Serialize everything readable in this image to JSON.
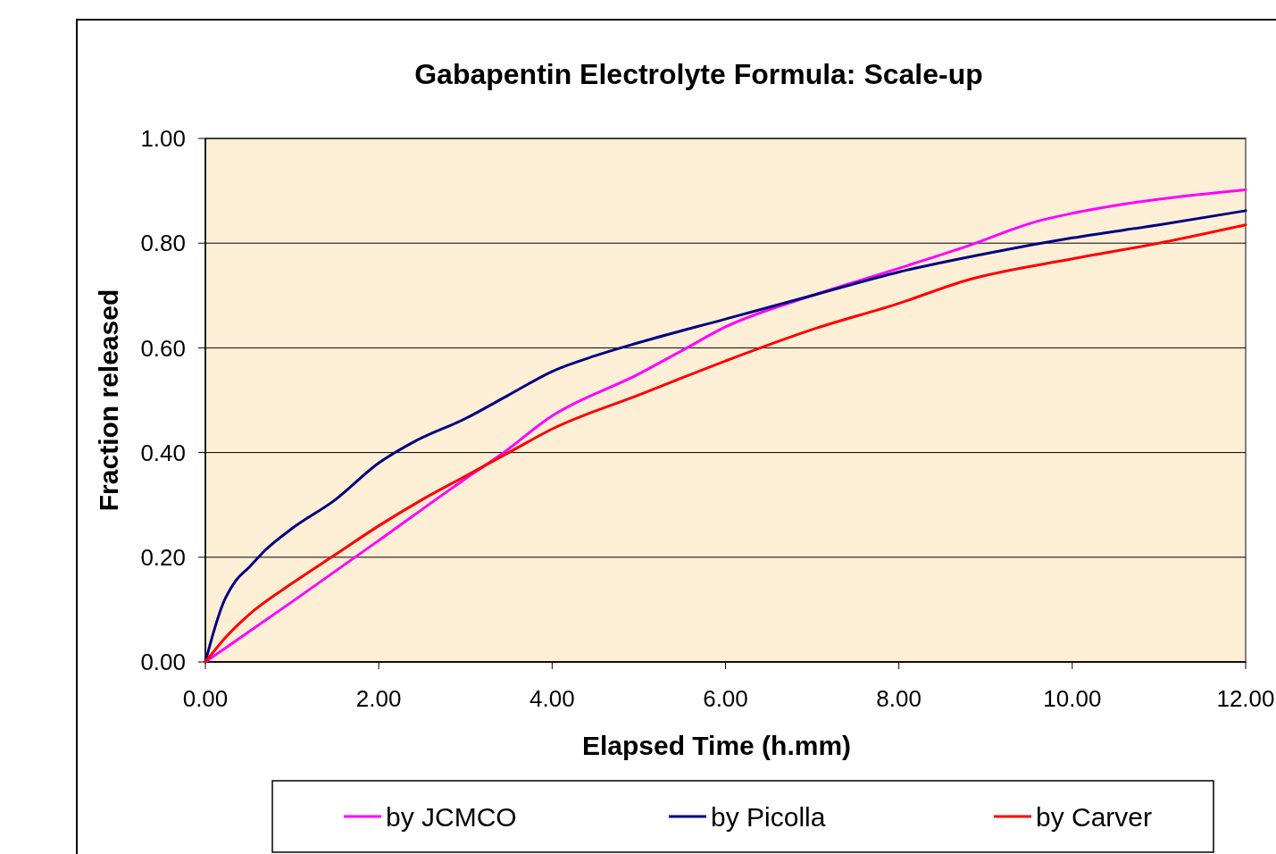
{
  "chart_data": {
    "type": "line",
    "title": "Gabapentin Electrolyte Formula:  Scale-up",
    "xlabel": "Elapsed Time (h.mm)",
    "ylabel": "Fraction released",
    "x": [
      0,
      1,
      2,
      3,
      3.4,
      4,
      5,
      5.5,
      6,
      7,
      8,
      8.8,
      9.6,
      10,
      10.5,
      11,
      12
    ],
    "series": [
      {
        "name": "by JCMCO",
        "color": "#ff00ff",
        "values": [
          0,
          0.115,
          0.232,
          0.35,
          0.395,
          0.47,
          0.55,
          0.595,
          0.64,
          0.7,
          0.752,
          0.795,
          0.842,
          0.857,
          0.872,
          0.884,
          0.902
        ]
      },
      {
        "name": "by Picolla",
        "color": "#000080",
        "x": [
          0,
          0.1,
          0.2,
          0.35,
          0.5,
          0.7,
          1,
          1.5,
          2,
          2.4,
          3,
          3.5,
          4,
          4.5,
          5,
          6,
          7,
          8,
          9,
          10,
          11,
          12
        ],
        "values": [
          0,
          0.06,
          0.11,
          0.155,
          0.18,
          0.215,
          0.255,
          0.31,
          0.38,
          0.42,
          0.465,
          0.51,
          0.555,
          0.585,
          0.61,
          0.655,
          0.7,
          0.745,
          0.78,
          0.81,
          0.835,
          0.862
        ]
      },
      {
        "name": "by Carver",
        "color": "#ff0000",
        "x": [
          0,
          0.25,
          0.5,
          1,
          1.5,
          2,
          2.5,
          3,
          3.5,
          4,
          5,
          6,
          7,
          8,
          8.8,
          10,
          11,
          12
        ],
        "values": [
          0,
          0.05,
          0.09,
          0.15,
          0.205,
          0.26,
          0.31,
          0.355,
          0.4,
          0.445,
          0.51,
          0.575,
          0.635,
          0.685,
          0.73,
          0.77,
          0.8,
          0.835
        ]
      }
    ],
    "xlim": [
      0,
      12
    ],
    "xticks": [
      {
        "value": 0,
        "label": "0.00"
      },
      {
        "value": 2,
        "label": "2.00"
      },
      {
        "value": 4,
        "label": "4.00"
      },
      {
        "value": 6,
        "label": "6.00"
      },
      {
        "value": 8,
        "label": "8.00"
      },
      {
        "value": 10,
        "label": "10.00"
      },
      {
        "value": 12,
        "label": "12.00"
      }
    ],
    "ylim": [
      0,
      1
    ],
    "yticks": [
      {
        "value": 0,
        "label": "0.00"
      },
      {
        "value": 0.2,
        "label": "0.20"
      },
      {
        "value": 0.4,
        "label": "0.40"
      },
      {
        "value": 0.6,
        "label": "0.60"
      },
      {
        "value": 0.8,
        "label": "0.80"
      },
      {
        "value": 1,
        "label": "1.00"
      }
    ],
    "grid": "y",
    "legend": "bottom",
    "line_style": "solid",
    "marker": "none"
  }
}
